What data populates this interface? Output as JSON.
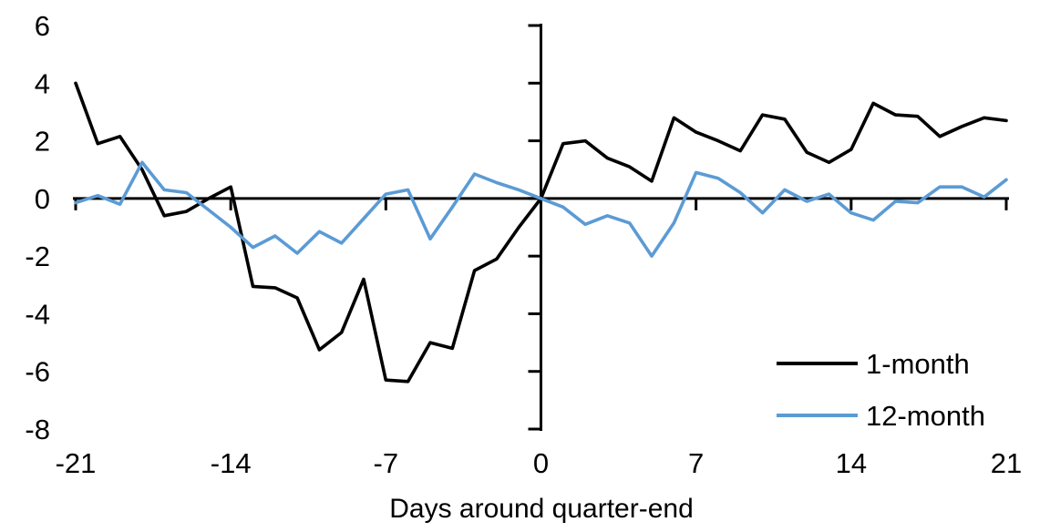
{
  "chart_data": {
    "type": "line",
    "title": "",
    "xlabel": "Days around quarter-end",
    "ylabel": "",
    "xlim": [
      -21,
      21
    ],
    "ylim": [
      -8,
      6
    ],
    "xticks": [
      -21,
      -14,
      -7,
      0,
      7,
      14,
      21
    ],
    "yticks": [
      6,
      4,
      2,
      0,
      -2,
      -4,
      -6,
      -8
    ],
    "grid": false,
    "legend_position": "bottom-right",
    "x": [
      -21,
      -20,
      -19,
      -18,
      -17,
      -16,
      -15,
      -14,
      -13,
      -12,
      -11,
      -10,
      -9,
      -8,
      -7,
      -6,
      -5,
      -4,
      -3,
      -2,
      -1,
      0,
      1,
      2,
      3,
      4,
      5,
      6,
      7,
      8,
      9,
      10,
      11,
      12,
      13,
      14,
      15,
      16,
      17,
      18,
      19,
      20,
      21
    ],
    "series": [
      {
        "name": "1-month",
        "color": "#000000",
        "values": [
          4.0,
          1.9,
          2.15,
          1.0,
          -0.6,
          -0.45,
          0.0,
          0.4,
          -3.05,
          -3.1,
          -3.45,
          -5.25,
          -4.65,
          -2.8,
          -6.3,
          -6.35,
          -5.0,
          -5.2,
          -2.5,
          -2.1,
          -1.0,
          0.0,
          1.9,
          2.0,
          1.4,
          1.1,
          0.6,
          2.8,
          2.3,
          2.0,
          1.65,
          2.9,
          2.75,
          1.6,
          1.25,
          1.7,
          3.3,
          2.9,
          2.85,
          2.15,
          2.5,
          2.8,
          2.7
        ]
      },
      {
        "name": "12-month",
        "color": "#5B9BD5",
        "values": [
          -0.15,
          0.1,
          -0.2,
          1.25,
          0.3,
          0.2,
          -0.4,
          -1.0,
          -1.7,
          -1.3,
          -1.9,
          -1.15,
          -1.55,
          -0.7,
          0.15,
          0.3,
          -1.4,
          -0.3,
          0.85,
          0.55,
          0.3,
          0.0,
          -0.3,
          -0.9,
          -0.6,
          -0.85,
          -2.0,
          -0.85,
          0.9,
          0.7,
          0.2,
          -0.5,
          0.3,
          -0.1,
          0.15,
          -0.5,
          -0.75,
          -0.1,
          -0.15,
          0.4,
          0.4,
          0.05,
          0.65
        ]
      }
    ]
  },
  "axes": {
    "x_label": "Days around quarter-end"
  },
  "legend": {
    "items": [
      {
        "label": "1-month",
        "color": "#000000"
      },
      {
        "label": "12-month",
        "color": "#5B9BD5"
      }
    ]
  }
}
